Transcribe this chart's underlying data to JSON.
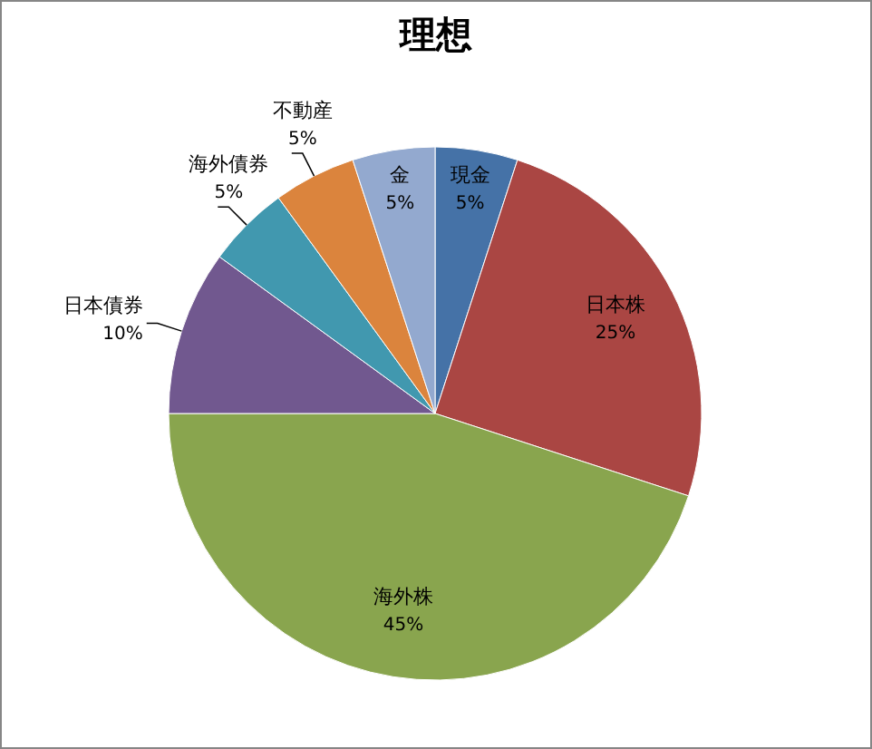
{
  "chart_data": {
    "type": "pie",
    "title": "理想",
    "categories": [
      "現金",
      "日本株",
      "海外株",
      "日本債券",
      "海外債券",
      "不動産",
      "金"
    ],
    "values": [
      5,
      25,
      45,
      10,
      5,
      5,
      5
    ],
    "colors": [
      "#4572a7",
      "#aa4643",
      "#89a54e",
      "#71588f",
      "#4198af",
      "#db843d",
      "#93a9cf"
    ],
    "value_labels": [
      "5%",
      "25%",
      "45%",
      "10%",
      "5%",
      "5%",
      "5%"
    ],
    "legend": false
  }
}
